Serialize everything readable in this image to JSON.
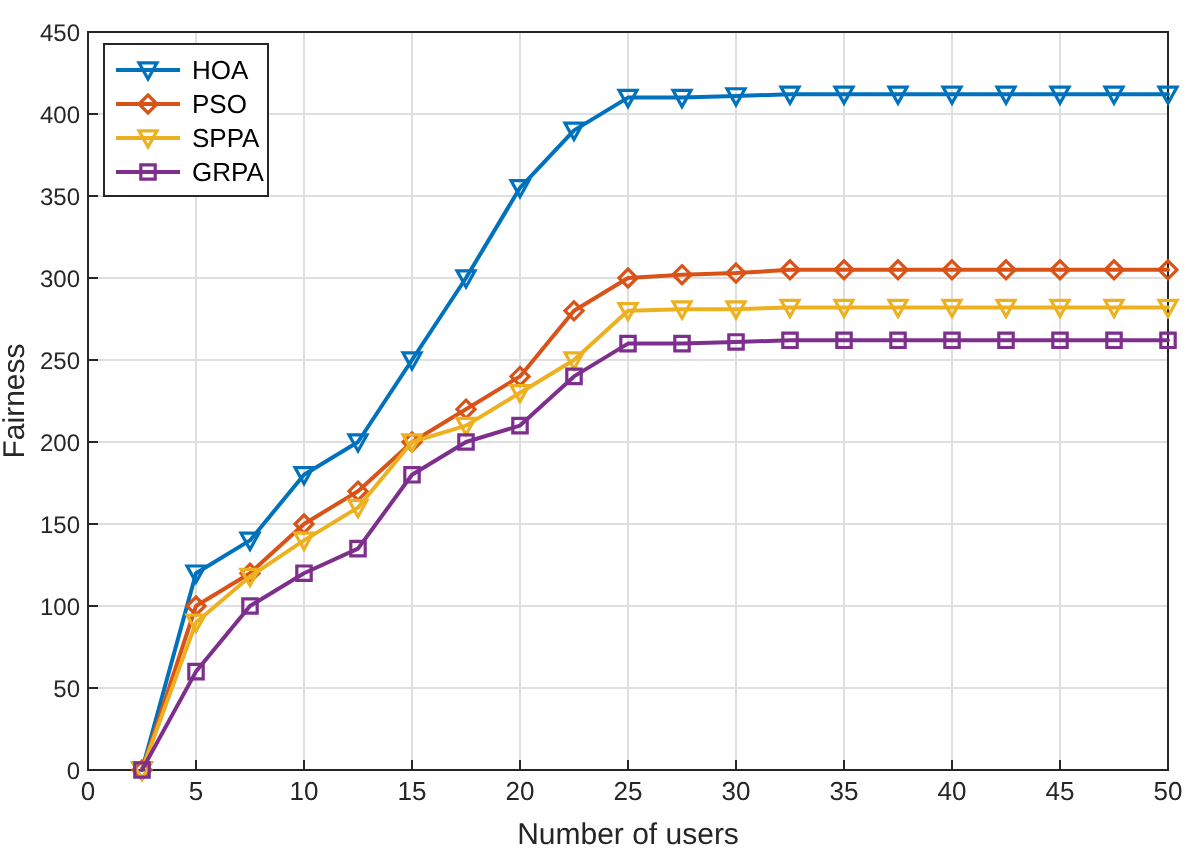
{
  "chart_data": {
    "type": "line",
    "xlabel": "Number of users",
    "ylabel": "Fairness",
    "x": [
      2.5,
      5,
      7.5,
      10,
      12.5,
      15,
      17.5,
      20,
      22.5,
      25,
      27.5,
      30,
      32.5,
      35,
      37.5,
      40,
      42.5,
      45,
      47.5,
      50
    ],
    "series": [
      {
        "name": "HOA",
        "color": "#0072bd",
        "marker": "triangle",
        "values": [
          0,
          120,
          140,
          180,
          200,
          250,
          300,
          355,
          390,
          410,
          410,
          411,
          412,
          412,
          412,
          412,
          412,
          412,
          412,
          412
        ]
      },
      {
        "name": "PSO",
        "color": "#d95319",
        "marker": "diamond",
        "values": [
          0,
          100,
          120,
          150,
          170,
          200,
          220,
          240,
          280,
          300,
          302,
          303,
          305,
          305,
          305,
          305,
          305,
          305,
          305,
          305
        ]
      },
      {
        "name": "SPPA",
        "color": "#edb120",
        "marker": "triangle",
        "values": [
          0,
          90,
          118,
          140,
          160,
          200,
          210,
          230,
          250,
          280,
          281,
          281,
          282,
          282,
          282,
          282,
          282,
          282,
          282,
          282
        ]
      },
      {
        "name": "GRPA",
        "color": "#7e2f8e",
        "marker": "square",
        "values": [
          0,
          60,
          100,
          120,
          135,
          180,
          200,
          210,
          240,
          260,
          260,
          261,
          262,
          262,
          262,
          262,
          262,
          262,
          262,
          262
        ]
      }
    ],
    "xlim": [
      0,
      50
    ],
    "xticks": [
      0,
      5,
      10,
      15,
      20,
      25,
      30,
      35,
      40,
      45,
      50
    ],
    "ylim": [
      0,
      450
    ],
    "yticks": [
      0,
      50,
      100,
      150,
      200,
      250,
      300,
      350,
      400,
      450
    ],
    "grid": true,
    "legend": "top left",
    "line_style": "solid"
  }
}
